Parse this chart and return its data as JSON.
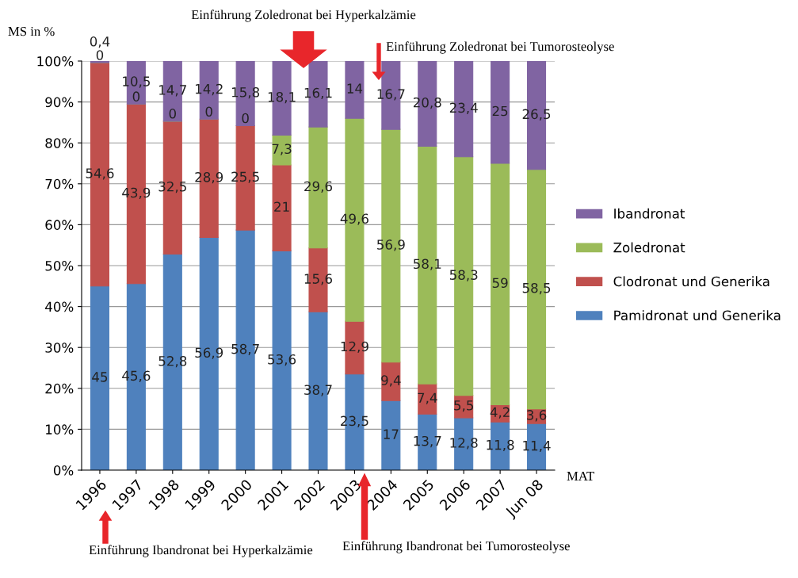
{
  "chart_data": {
    "type": "bar",
    "stacked": true,
    "ylabel": "MS in %",
    "xlabel": "MAT",
    "categories": [
      "1996",
      "1997",
      "1998",
      "1999",
      "2000",
      "2001",
      "2002",
      "2003",
      "2004",
      "2005",
      "2006",
      "2007",
      "Jun 08"
    ],
    "series": [
      {
        "name": "Pamidronat und Generika",
        "color": "#4f81bd",
        "values": [
          45,
          45.6,
          52.8,
          56.9,
          58.7,
          53.6,
          38.7,
          23.5,
          17,
          13.7,
          12.8,
          11.8,
          11.4
        ],
        "value_labels": [
          "45",
          "45,6",
          "52,8",
          "56,9",
          "58,7",
          "53,6",
          "38,7",
          "23,5",
          "17",
          "13,7",
          "12,8",
          "11,8",
          "11,4"
        ]
      },
      {
        "name": "Clodronat und Generika",
        "color": "#c0504d",
        "values": [
          54.6,
          43.9,
          32.5,
          28.9,
          25.5,
          21,
          15.6,
          12.9,
          9.4,
          7.4,
          5.5,
          4.2,
          3.6
        ],
        "value_labels": [
          "54,6",
          "43,9",
          "32,5",
          "28,9",
          "25,5",
          "21",
          "15,6",
          "12,9",
          "9,4",
          "7,4",
          "5,5",
          "4,2",
          "3,6"
        ]
      },
      {
        "name": "Zoledronat",
        "color": "#9bbb59",
        "values": [
          0,
          0,
          0,
          0,
          0,
          7.3,
          29.6,
          49.6,
          56.9,
          58.1,
          58.3,
          59,
          58.5
        ],
        "value_labels": [
          "0",
          "0",
          "0",
          "0",
          "0",
          "7,3",
          "29,6",
          "49,6",
          "56,9",
          "58,1",
          "58,3",
          "59",
          "58,5"
        ]
      },
      {
        "name": "Ibandronat",
        "color": "#8064a2",
        "values": [
          0.4,
          10.5,
          14.7,
          14.2,
          15.8,
          18.1,
          16.1,
          14,
          16.7,
          20.8,
          23.4,
          25,
          26.5
        ],
        "value_labels": [
          "0,4",
          "10,5",
          "14,7",
          "14,2",
          "15,8",
          "18,1",
          "16,1",
          "14",
          "16,7",
          "20,8",
          "23,4",
          "25",
          "26,5"
        ]
      }
    ],
    "ylim": [
      0,
      100
    ],
    "yticks": [
      {
        "value": 0,
        "label": "0%"
      },
      {
        "value": 10,
        "label": "10%"
      },
      {
        "value": 20,
        "label": "20%"
      },
      {
        "value": 30,
        "label": "30%"
      },
      {
        "value": 40,
        "label": "40%"
      },
      {
        "value": 50,
        "label": "50%"
      },
      {
        "value": 60,
        "label": "60%"
      },
      {
        "value": 70,
        "label": "70%"
      },
      {
        "value": 80,
        "label": "80%"
      },
      {
        "value": 90,
        "label": "90%"
      },
      {
        "value": 100,
        "label": "100%"
      }
    ],
    "grid": "y",
    "legend": "right",
    "annotations": [
      "Einführung Zoledronat bei Hyperkalzämie",
      "Einführung Zoledronat bei Tumorosteolyse",
      "Einführung Ibandronat bei Hyperkalzämie",
      "Einführung Ibandronat bei Tumorosteolyse"
    ]
  }
}
